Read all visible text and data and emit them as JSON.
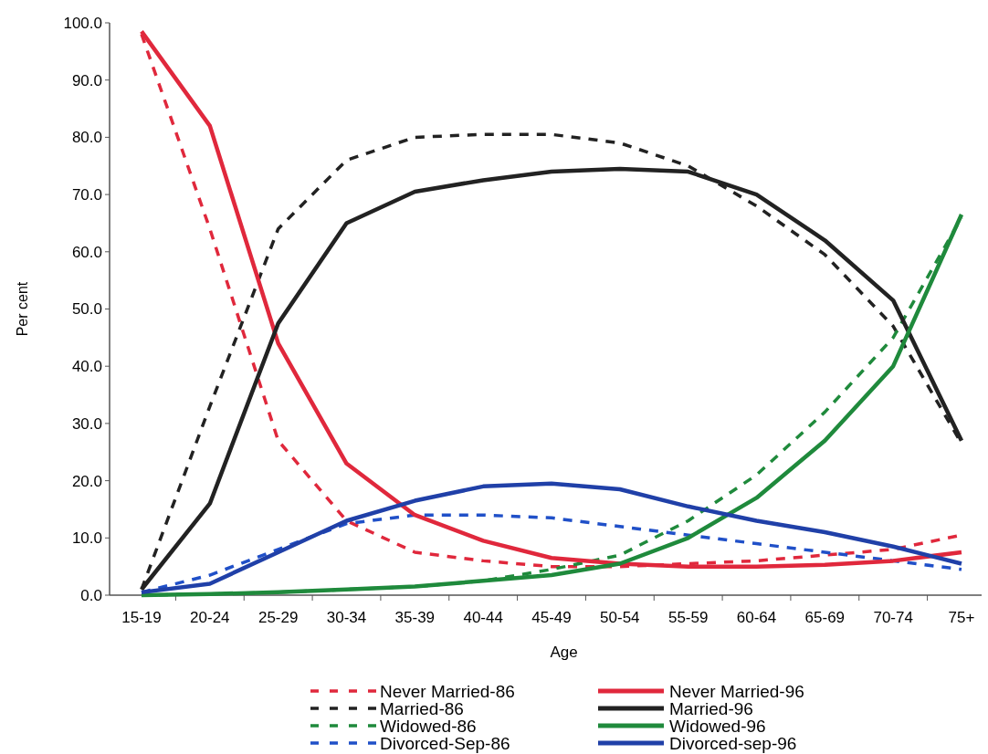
{
  "chart_data": {
    "type": "line",
    "xlabel": "Age",
    "ylabel": "Per cent",
    "categories": [
      "15-19",
      "20-24",
      "25-29",
      "30-34",
      "35-39",
      "40-44",
      "45-49",
      "50-54",
      "55-59",
      "60-64",
      "65-69",
      "70-74",
      "75+"
    ],
    "ylim": [
      0,
      100
    ],
    "yticks": [
      {
        "value": 0,
        "label": "0.0"
      },
      {
        "value": 10,
        "label": "10.0"
      },
      {
        "value": 20,
        "label": "20.0"
      },
      {
        "value": 30,
        "label": "30.0"
      },
      {
        "value": 40,
        "label": "40.0"
      },
      {
        "value": 50,
        "label": "50.0"
      },
      {
        "value": 60,
        "label": "60.0"
      },
      {
        "value": 70,
        "label": "70.0"
      },
      {
        "value": 80,
        "label": "80.0"
      },
      {
        "value": 90,
        "label": "90.0"
      },
      {
        "value": 100,
        "label": "100.0"
      }
    ],
    "grid": false,
    "legend": "bottom",
    "marker": "none",
    "series": [
      {
        "name": "Never Married-86",
        "color": "#e0283c",
        "line_style": "dashed",
        "values": [
          98,
          64,
          27,
          13,
          7.5,
          6,
          5,
          5,
          5.5,
          6,
          7,
          8,
          10.5
        ]
      },
      {
        "name": "Married-86",
        "color": "#222222",
        "line_style": "dashed",
        "values": [
          1,
          33,
          64,
          76,
          80,
          80.5,
          80.5,
          79,
          75,
          68,
          59.5,
          47,
          26.5
        ]
      },
      {
        "name": "Widowed-86",
        "color": "#1f8a3c",
        "line_style": "dashed",
        "values": [
          0,
          0.2,
          0.5,
          1,
          1.5,
          2.5,
          4.5,
          7,
          13,
          21,
          32,
          45,
          66
        ]
      },
      {
        "name": "Divorced-Sep-86",
        "color": "#2050c8",
        "line_style": "dashed",
        "values": [
          0.5,
          3.5,
          8,
          12.5,
          14,
          14,
          13.5,
          12,
          10.5,
          9,
          7.5,
          6,
          4.5
        ]
      },
      {
        "name": "Never Married-96",
        "color": "#e0283c",
        "line_style": "solid",
        "values": [
          98.5,
          82,
          44,
          23,
          14,
          9.5,
          6.5,
          5.5,
          5,
          5,
          5.3,
          6,
          7.5
        ]
      },
      {
        "name": "Married-96",
        "color": "#222222",
        "line_style": "solid",
        "values": [
          1,
          16,
          47.5,
          65,
          70.5,
          72.5,
          74,
          74.5,
          74,
          70,
          62,
          51.5,
          27
        ]
      },
      {
        "name": "Widowed-96",
        "color": "#1f8a3c",
        "line_style": "solid",
        "values": [
          0,
          0.2,
          0.5,
          1,
          1.5,
          2.5,
          3.5,
          5.5,
          10,
          17,
          27,
          40,
          66.5
        ]
      },
      {
        "name": "Divorced-sep-96",
        "color": "#2040a8",
        "line_style": "solid",
        "values": [
          0.5,
          2,
          7.5,
          13,
          16.5,
          19,
          19.5,
          18.5,
          15.5,
          13,
          11,
          8.5,
          5.5
        ]
      }
    ]
  }
}
